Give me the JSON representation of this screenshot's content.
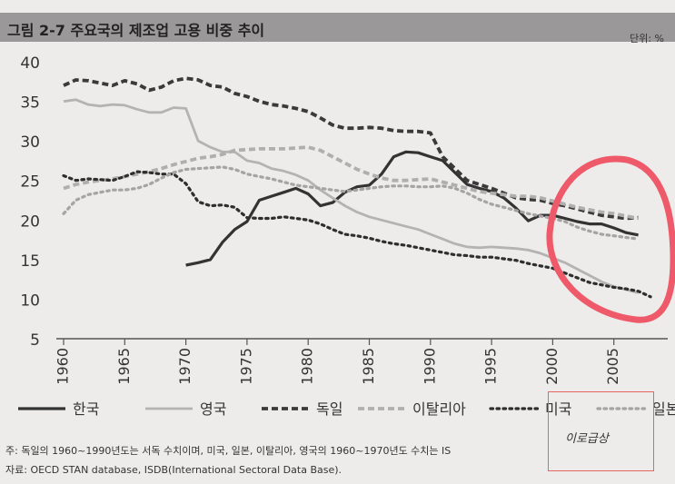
{
  "header": {
    "title": "그림 2-7 주요국의 제조업 고용 비중 추이",
    "unit": "단위: %"
  },
  "notes": {
    "note": "주: 독일의 1960~1990년도는 서독 수치이며, 미국, 일본, 이탈리아, 영국의 1960~1970년도 수치는 IS",
    "source": "자료: OECD STAN database, ISDB(International Sectoral Data Base)."
  },
  "watermark": {
    "text": "이로급상"
  },
  "colors": {
    "background": "#eeeceb",
    "title_bar": "#9a9898",
    "annotation_circle": "#ef5a6a"
  },
  "chart_data": {
    "type": "line",
    "title": "그림 2-7 주요국의 제조업 고용 비중 추이",
    "unit": "단위: %",
    "ylim": [
      5,
      40
    ],
    "yticks": [
      5,
      10,
      15,
      20,
      25,
      30,
      35,
      40
    ],
    "xlim": [
      1960,
      2008
    ],
    "xticks": [
      1960,
      1965,
      1970,
      1975,
      1980,
      1985,
      1990,
      1995,
      2000,
      2005
    ],
    "grid": false,
    "legend_position": "bottom",
    "series": [
      {
        "name": "한국",
        "color": "#333333",
        "style": "solid",
        "width": 3.2,
        "x": [
          1970,
          1971,
          1972,
          1973,
          1974,
          1975,
          1976,
          1977,
          1978,
          1979,
          1980,
          1981,
          1982,
          1983,
          1984,
          1985,
          1986,
          1987,
          1988,
          1989,
          1990,
          1991,
          1992,
          1993,
          1994,
          1995,
          1996,
          1997,
          1998,
          1999,
          2000,
          2001,
          2002,
          2003,
          2004,
          2005,
          2006,
          2007
        ],
        "values": [
          14.3,
          14.6,
          15.0,
          17.2,
          18.8,
          19.8,
          22.5,
          23.0,
          23.5,
          24.0,
          23.3,
          21.8,
          22.2,
          23.5,
          24.2,
          24.4,
          25.8,
          28.0,
          28.6,
          28.5,
          28.0,
          27.5,
          26.0,
          24.5,
          24.0,
          23.6,
          22.8,
          21.5,
          19.9,
          20.6,
          20.6,
          20.2,
          19.8,
          19.5,
          19.5,
          19.0,
          18.4,
          18.1
        ]
      },
      {
        "name": "영국",
        "color": "#b5b3b2",
        "style": "solid",
        "width": 2.8,
        "x": [
          1960,
          1961,
          1962,
          1963,
          1964,
          1965,
          1966,
          1967,
          1968,
          1969,
          1970,
          1971,
          1972,
          1973,
          1974,
          1975,
          1976,
          1977,
          1978,
          1979,
          1980,
          1981,
          1982,
          1983,
          1984,
          1985,
          1986,
          1987,
          1988,
          1989,
          1990,
          1991,
          1992,
          1993,
          1994,
          1995,
          1996,
          1997,
          1998,
          1999,
          2000,
          2001,
          2002,
          2003,
          2004,
          2005,
          2006,
          2007
        ],
        "values": [
          35.0,
          35.2,
          34.6,
          34.4,
          34.6,
          34.5,
          34.0,
          33.6,
          33.6,
          34.2,
          34.1,
          30.0,
          29.2,
          28.6,
          28.6,
          27.5,
          27.2,
          26.5,
          26.2,
          25.7,
          25.0,
          23.8,
          22.8,
          21.8,
          21.0,
          20.4,
          20.0,
          19.6,
          19.2,
          18.8,
          18.2,
          17.6,
          17.0,
          16.6,
          16.5,
          16.6,
          16.5,
          16.4,
          16.2,
          15.8,
          15.2,
          14.6,
          13.8,
          13.0,
          12.2,
          11.6,
          11.2,
          10.8
        ]
      },
      {
        "name": "독일",
        "color": "#3a3a3a",
        "style": "dashed",
        "width": 3.8,
        "x": [
          1960,
          1961,
          1962,
          1963,
          1964,
          1965,
          1966,
          1967,
          1968,
          1969,
          1970,
          1971,
          1972,
          1973,
          1974,
          1975,
          1976,
          1977,
          1978,
          1979,
          1980,
          1981,
          1982,
          1983,
          1984,
          1985,
          1986,
          1987,
          1988,
          1989,
          1990,
          1991,
          1992,
          1993,
          1994,
          1995,
          1996,
          1997,
          1998,
          1999,
          2000,
          2001,
          2002,
          2003,
          2004,
          2005,
          2006,
          2007
        ],
        "values": [
          37.0,
          37.7,
          37.6,
          37.3,
          37.0,
          37.6,
          37.2,
          36.4,
          36.8,
          37.6,
          37.9,
          37.7,
          37.0,
          36.8,
          36.0,
          35.6,
          35.0,
          34.6,
          34.4,
          34.1,
          33.7,
          32.9,
          32.0,
          31.6,
          31.6,
          31.7,
          31.6,
          31.3,
          31.2,
          31.2,
          31.0,
          28.0,
          26.5,
          25.0,
          24.5,
          24.0,
          23.4,
          22.8,
          22.6,
          22.5,
          22.1,
          21.8,
          21.4,
          21.0,
          20.6,
          20.4,
          20.2,
          20.3
        ]
      },
      {
        "name": "이탈리아",
        "color": "#b0aeae",
        "style": "dashed",
        "width": 3.8,
        "x": [
          1960,
          1961,
          1962,
          1963,
          1964,
          1965,
          1966,
          1967,
          1968,
          1969,
          1970,
          1971,
          1972,
          1973,
          1974,
          1975,
          1976,
          1977,
          1978,
          1979,
          1980,
          1981,
          1982,
          1983,
          1984,
          1985,
          1986,
          1987,
          1988,
          1989,
          1990,
          1991,
          1992,
          1993,
          1994,
          1995,
          1996,
          1997,
          1998,
          1999,
          2000,
          2001,
          2002,
          2003,
          2004,
          2005,
          2006,
          2007
        ],
        "values": [
          24.0,
          24.5,
          24.8,
          25.0,
          25.2,
          25.5,
          25.8,
          26.1,
          26.5,
          27.0,
          27.4,
          27.8,
          28.0,
          28.3,
          28.8,
          28.9,
          29.0,
          29.0,
          29.0,
          29.1,
          29.2,
          28.8,
          28.0,
          27.2,
          26.4,
          25.8,
          25.3,
          25.0,
          25.0,
          25.1,
          25.2,
          24.8,
          24.4,
          24.0,
          23.6,
          23.4,
          23.2,
          23.0,
          23.0,
          22.8,
          22.4,
          22.0,
          21.6,
          21.3,
          21.0,
          20.8,
          20.5,
          20.2
        ]
      },
      {
        "name": "미국",
        "color": "#2e2e2e",
        "style": "dotted",
        "width": 3.2,
        "x": [
          1960,
          1961,
          1962,
          1963,
          1964,
          1965,
          1966,
          1967,
          1968,
          1969,
          1970,
          1971,
          1972,
          1973,
          1974,
          1975,
          1976,
          1977,
          1978,
          1979,
          1980,
          1981,
          1982,
          1983,
          1984,
          1985,
          1986,
          1987,
          1988,
          1989,
          1990,
          1991,
          1992,
          1993,
          1994,
          1995,
          1996,
          1997,
          1998,
          1999,
          2000,
          2001,
          2002,
          2003,
          2004,
          2005,
          2006,
          2007,
          2008
        ],
        "values": [
          25.6,
          25.0,
          25.2,
          25.1,
          25.0,
          25.5,
          26.1,
          26.0,
          25.8,
          25.8,
          24.6,
          22.3,
          21.8,
          21.9,
          21.6,
          20.3,
          20.2,
          20.2,
          20.4,
          20.2,
          20.0,
          19.5,
          18.8,
          18.2,
          18.0,
          17.7,
          17.3,
          17.0,
          16.8,
          16.5,
          16.2,
          15.9,
          15.6,
          15.5,
          15.3,
          15.3,
          15.1,
          14.9,
          14.5,
          14.2,
          13.9,
          13.3,
          12.7,
          12.1,
          11.8,
          11.5,
          11.3,
          11.0,
          10.3
        ]
      },
      {
        "name": "일본",
        "color": "#a5a3a3",
        "style": "dotted",
        "width": 3.2,
        "x": [
          1960,
          1961,
          1962,
          1963,
          1964,
          1965,
          1966,
          1967,
          1968,
          1969,
          1970,
          1971,
          1972,
          1973,
          1974,
          1975,
          1976,
          1977,
          1978,
          1979,
          1980,
          1981,
          1982,
          1983,
          1984,
          1985,
          1986,
          1987,
          1988,
          1989,
          1990,
          1991,
          1992,
          1993,
          1994,
          1995,
          1996,
          1997,
          1998,
          1999,
          2000,
          2001,
          2002,
          2003,
          2004,
          2005,
          2006,
          2007
        ],
        "values": [
          20.8,
          22.5,
          23.2,
          23.5,
          23.8,
          23.8,
          24.0,
          24.5,
          25.3,
          26.0,
          26.4,
          26.5,
          26.6,
          26.7,
          26.4,
          25.8,
          25.5,
          25.2,
          24.8,
          24.4,
          24.2,
          24.0,
          23.8,
          23.6,
          23.8,
          24.0,
          24.2,
          24.3,
          24.3,
          24.2,
          24.2,
          24.3,
          24.0,
          23.4,
          22.6,
          22.0,
          21.6,
          21.2,
          20.8,
          20.5,
          20.2,
          19.8,
          19.1,
          18.6,
          18.2,
          18.0,
          17.8,
          17.6
        ]
      }
    ]
  }
}
